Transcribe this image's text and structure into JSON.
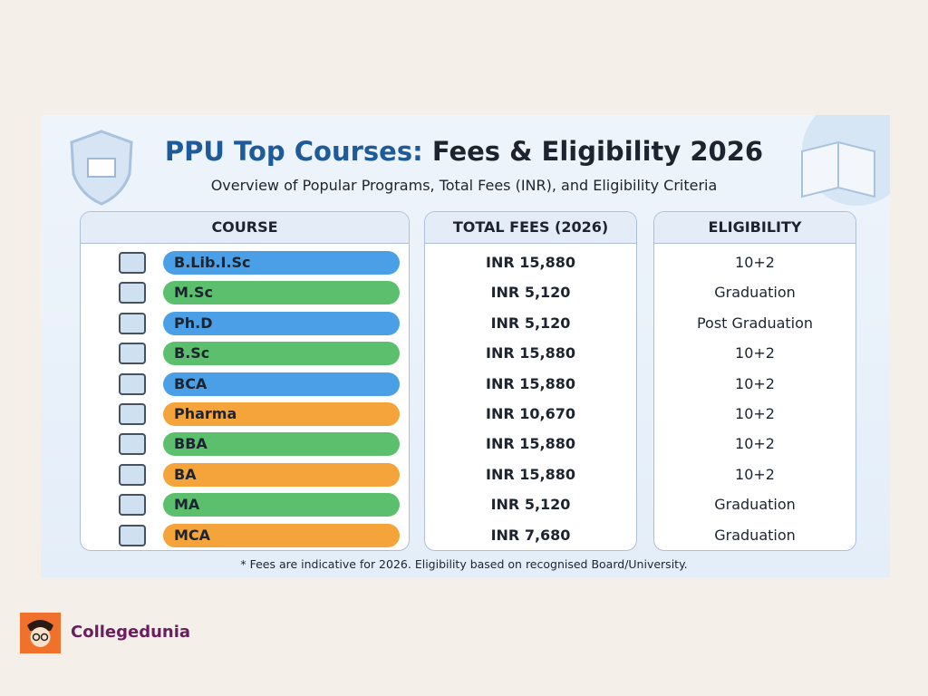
{
  "header": {
    "title_lead": "PPU Top Courses:",
    "title_rest": "Fees & Eligibility 2026",
    "subtitle": "Overview of Popular Programs, Total Fees (INR), and Eligibility Criteria"
  },
  "table": {
    "headers": [
      "COURSE",
      "TOTAL FEES (2026)",
      "ELIGIBILITY"
    ],
    "rows": [
      [
        "B.Lib.I.Sc",
        "INR 15,880",
        "10+2"
      ],
      [
        "M.Sc",
        "INR 5,120",
        "Graduation"
      ],
      [
        "Ph.D",
        "INR 5,120",
        "Post Graduation"
      ],
      [
        "B.Sc",
        "INR 15,880",
        "10+2"
      ],
      [
        "BCA",
        "INR 15,880",
        "10+2"
      ],
      [
        "Pharma",
        "INR 10,670",
        "10+2"
      ],
      [
        "BBA",
        "INR 15,880",
        "10+2"
      ],
      [
        "BA",
        "INR 15,880",
        "10+2"
      ],
      [
        "MA",
        "INR 5,120",
        "Graduation"
      ],
      [
        "MCA",
        "INR 7,680",
        "Graduation"
      ]
    ],
    "row_colors": [
      "#4a9fe6",
      "#5cbf6e",
      "#4a9fe6",
      "#5cbf6e",
      "#4a9fe6",
      "#f4a43a",
      "#5cbf6e",
      "#f4a43a",
      "#5cbf6e",
      "#f4a43a"
    ]
  },
  "footnote": "* Fees are indicative for 2026. Eligibility based on recognised Board/University.",
  "brand": "Collegedunia"
}
